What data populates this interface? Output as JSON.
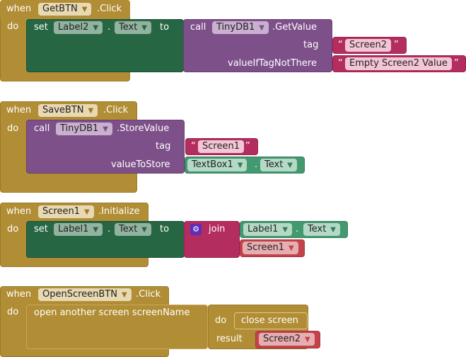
{
  "blocks": [
    {
      "when": "when",
      "component": "GetBTN",
      "event": ".Click",
      "do": "do",
      "set": "set",
      "target": "Label2",
      "dot": ".",
      "prop": "Text",
      "to": "to",
      "call": "call",
      "db": "TinyDB1",
      "method": ".GetValue",
      "tag": "tag",
      "tag_value": "Screen2",
      "arg2": "valueIfTagNotThere",
      "arg2_value": "Empty Screen2 Value"
    },
    {
      "when": "when",
      "component": "SaveBTN",
      "event": ".Click",
      "do": "do",
      "call": "call",
      "db": "TinyDB1",
      "method": ".StoreValue",
      "tag": "tag",
      "tag_value": "Screen1",
      "arg2": "valueToStore",
      "src": "TextBox1",
      "dot": ".",
      "prop": "Text"
    },
    {
      "when": "when",
      "component": "Screen1",
      "event": ".Initialize",
      "do": "do",
      "set": "set",
      "target": "Label1",
      "dot": ".",
      "prop": "Text",
      "to": "to",
      "join": "join",
      "j1": "Label1",
      "j1prop": "Text",
      "j2": "Screen1"
    },
    {
      "when": "when",
      "component": "OpenScreenBTN",
      "event": ".Click",
      "do": "do",
      "open": "open another screen  screenName",
      "inner_do": "do",
      "close": "close screen",
      "result": "result",
      "screen": "Screen2"
    }
  ],
  "quote_open": "“",
  "quote_close": "”",
  "arrow": "▼",
  "icons": {
    "join": "gear-icon"
  },
  "colors": {
    "event": "#b18e35",
    "setter": "#266643",
    "tinydb": "#7d5089",
    "text": "#b32d5e",
    "getter": "#439970",
    "screen": "#c2434a"
  }
}
